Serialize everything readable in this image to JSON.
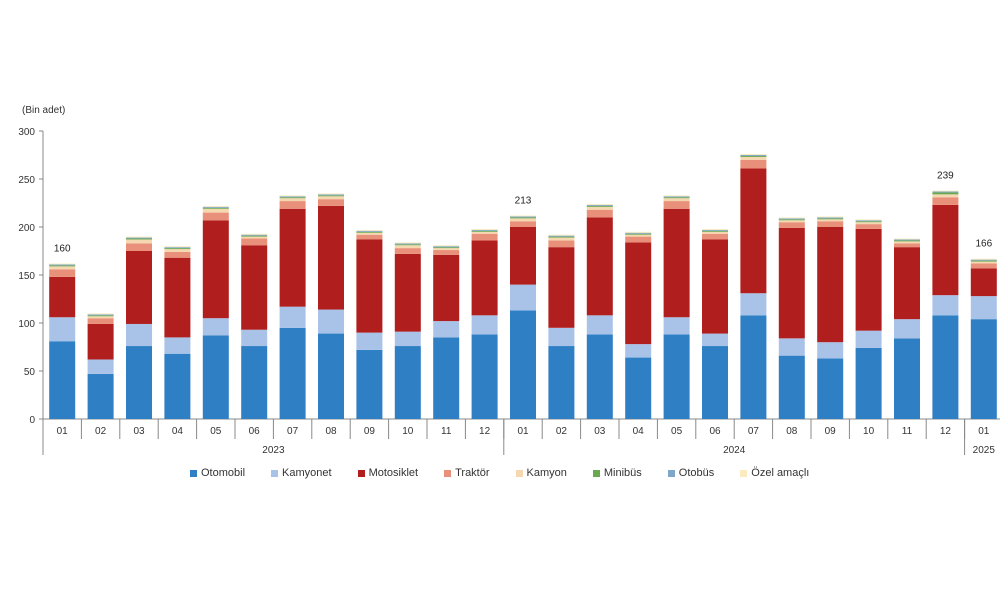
{
  "chart_data": {
    "type": "bar",
    "stacked": true,
    "ylabel": "(Bin adet)",
    "ylim": [
      0,
      300
    ],
    "yticks": [
      0,
      50,
      100,
      150,
      200,
      250,
      300
    ],
    "categories": [
      "01",
      "02",
      "03",
      "04",
      "05",
      "06",
      "07",
      "08",
      "09",
      "10",
      "11",
      "12",
      "01",
      "02",
      "03",
      "04",
      "05",
      "06",
      "07",
      "08",
      "09",
      "10",
      "11",
      "12",
      "01"
    ],
    "year_groups": [
      {
        "label": "2023",
        "count": 12
      },
      {
        "label": "2024",
        "count": 12
      },
      {
        "label": "2025",
        "count": 1
      }
    ],
    "series": [
      {
        "name": "Otomobil",
        "color": "#2e7fc4",
        "values": [
          81,
          47,
          76,
          68,
          87,
          76,
          95,
          89,
          72,
          76,
          85,
          88,
          113,
          76,
          88,
          64,
          88,
          76,
          108,
          66,
          63,
          74,
          84,
          108,
          104
        ]
      },
      {
        "name": "Kamyonet",
        "color": "#a9c3e8",
        "values": [
          25,
          15,
          23,
          17,
          18,
          17,
          22,
          25,
          18,
          15,
          17,
          20,
          27,
          19,
          20,
          14,
          18,
          13,
          23,
          18,
          17,
          18,
          20,
          21,
          24
        ]
      },
      {
        "name": "Motosiklet",
        "color": "#b01e1e",
        "values": [
          42,
          37,
          76,
          83,
          102,
          88,
          102,
          108,
          97,
          81,
          69,
          78,
          60,
          84,
          102,
          106,
          113,
          98,
          130,
          115,
          120,
          106,
          75,
          94,
          29
        ]
      },
      {
        "name": "Traktör",
        "color": "#e9907a",
        "values": [
          8,
          6,
          8,
          6,
          8,
          7,
          8,
          7,
          5,
          6,
          5,
          7,
          6,
          7,
          8,
          6,
          8,
          6,
          9,
          6,
          6,
          5,
          4,
          8,
          5
        ]
      },
      {
        "name": "Kamyon",
        "color": "#f6d8b0",
        "values": [
          3,
          2,
          4,
          3,
          4,
          2,
          3,
          3,
          2,
          3,
          2,
          2,
          3,
          3,
          3,
          2,
          3,
          2,
          3,
          2,
          2,
          2,
          2,
          3,
          2
        ]
      },
      {
        "name": "Minibüs",
        "color": "#6aa84f",
        "values": [
          1,
          1,
          1,
          1,
          1,
          1,
          1,
          1,
          1,
          1,
          1,
          1,
          1,
          1,
          1,
          1,
          1,
          1,
          1,
          1,
          1,
          1,
          1,
          2,
          1
        ]
      },
      {
        "name": "Otobüs",
        "color": "#7fa7c9",
        "values": [
          1,
          1,
          1,
          1,
          1,
          1,
          1,
          1,
          1,
          1,
          1,
          1,
          1,
          1,
          1,
          1,
          1,
          1,
          1,
          1,
          1,
          1,
          1,
          1,
          1
        ]
      },
      {
        "name": "Özel amaçlı",
        "color": "#faecc0",
        "values": [
          1,
          1,
          1,
          1,
          1,
          1,
          1,
          1,
          1,
          1,
          1,
          1,
          1,
          1,
          1,
          1,
          1,
          1,
          1,
          1,
          1,
          1,
          1,
          1,
          1
        ]
      }
    ],
    "annotations": [
      {
        "index": 0,
        "text": "160"
      },
      {
        "index": 12,
        "text": "213"
      },
      {
        "index": 23,
        "text": "239"
      },
      {
        "index": 24,
        "text": "166"
      }
    ],
    "grid": false,
    "legend_position": "bottom"
  }
}
